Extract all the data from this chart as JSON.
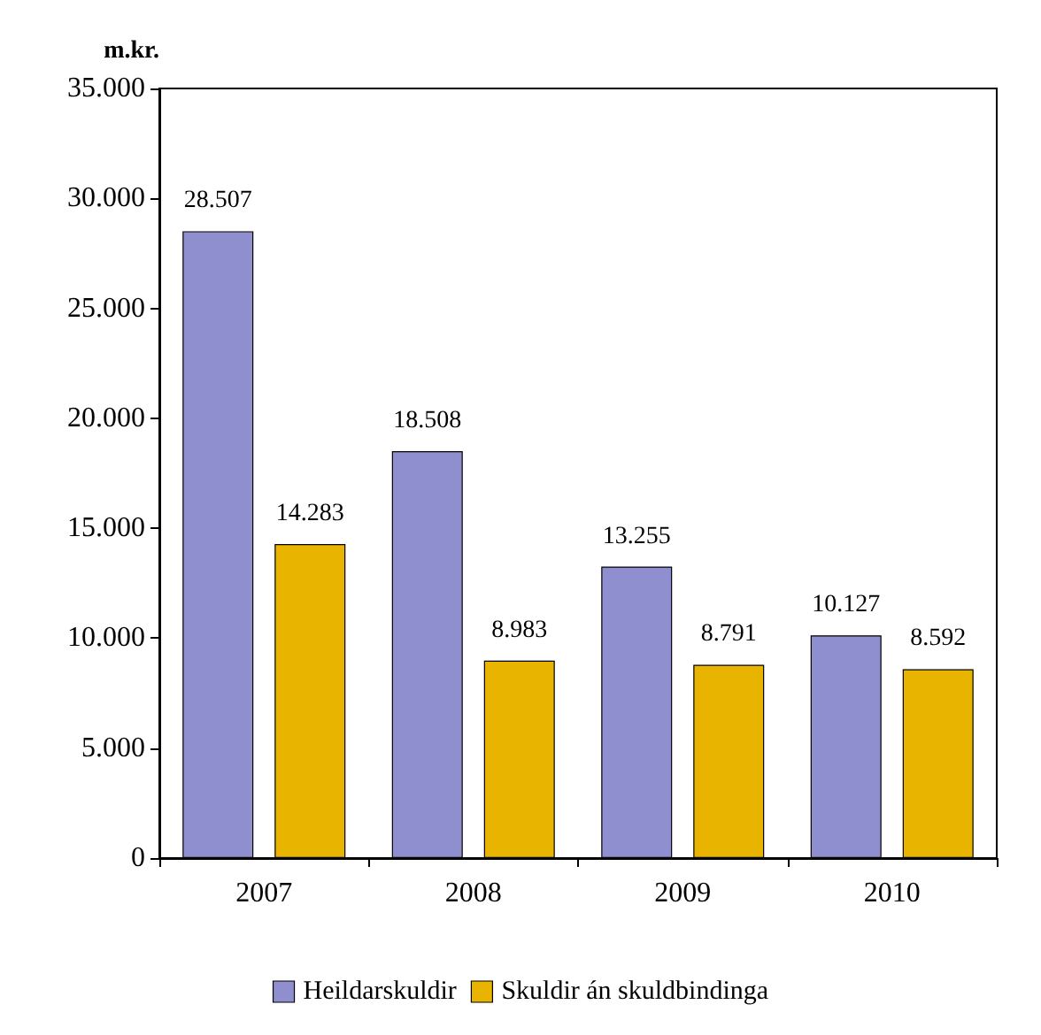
{
  "chart_data": {
    "type": "bar",
    "ylabel": "m.kr.",
    "categories": [
      "2007",
      "2008",
      "2009",
      "2010"
    ],
    "series": [
      {
        "name": "Heildarskuldir",
        "color": "#8f8fd0",
        "values": [
          28507,
          18508,
          13255,
          10127
        ],
        "value_labels": [
          "28.507",
          "18.508",
          "13.255",
          "10.127"
        ]
      },
      {
        "name": "Skuldir án skuldbindinga",
        "color": "#e8b400",
        "values": [
          14283,
          8983,
          8791,
          8592
        ],
        "value_labels": [
          "14.283",
          "8.983",
          "8.791",
          "8.592"
        ]
      }
    ],
    "ylim": [
      0,
      35000
    ],
    "yticks": [
      {
        "value": 0,
        "label": "0"
      },
      {
        "value": 5000,
        "label": "5.000"
      },
      {
        "value": 10000,
        "label": "10.000"
      },
      {
        "value": 15000,
        "label": "15.000"
      },
      {
        "value": 20000,
        "label": "20.000"
      },
      {
        "value": 25000,
        "label": "25.000"
      },
      {
        "value": 30000,
        "label": "30.000"
      },
      {
        "value": 35000,
        "label": "35.000"
      }
    ],
    "grid": false,
    "legend": "bottom"
  }
}
